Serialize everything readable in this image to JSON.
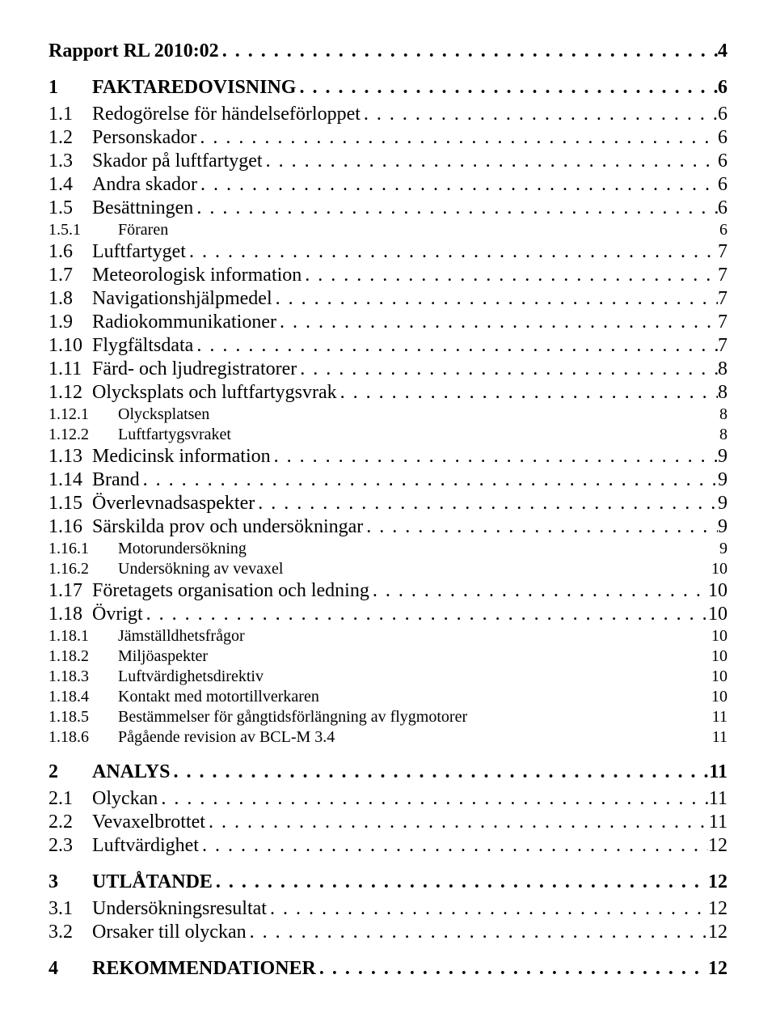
{
  "leader": ". . . . . . . . . . . . . . . . . . . . . . . . . . . . . . . . . . . . . . . . . . . . . . . . . . . . . . . . . . . . . . . . . . . . . . . . . . . . . . . . . . . . . . . . . . . . . . . . . . . . . . . . . . . . . . . . . . . . . . . .",
  "blank": " ",
  "toc": {
    "title": {
      "label": "Rapport RL 2010:02",
      "page": "4"
    },
    "items": [
      {
        "level": 0,
        "num": "1",
        "label": "FAKTAREDOVISNING",
        "page": "6"
      },
      {
        "level": 1,
        "num": "1.1",
        "label": "Redogörelse för händelseförloppet",
        "page": "6"
      },
      {
        "level": 1,
        "num": "1.2",
        "label": "Personskador",
        "page": "6"
      },
      {
        "level": 1,
        "num": "1.3",
        "label": "Skador på luftfartyget",
        "page": "6"
      },
      {
        "level": 1,
        "num": "1.4",
        "label": "Andra skador",
        "page": "6"
      },
      {
        "level": 1,
        "num": "1.5",
        "label": "Besättningen",
        "page": "6"
      },
      {
        "level": 2,
        "num": "1.5.1",
        "label": "Föraren",
        "page": "6",
        "noLeader": true
      },
      {
        "level": 1,
        "num": "1.6",
        "label": "Luftfartyget",
        "page": "7"
      },
      {
        "level": 1,
        "num": "1.7",
        "label": "Meteorologisk information",
        "page": "7"
      },
      {
        "level": 1,
        "num": "1.8",
        "label": "Navigationshjälpmedel",
        "page": "7"
      },
      {
        "level": 1,
        "num": "1.9",
        "label": "Radiokommunikationer",
        "page": "7"
      },
      {
        "level": 1,
        "num": "1.10",
        "label": "Flygfältsdata",
        "page": "7"
      },
      {
        "level": 1,
        "num": "1.11",
        "label": "Färd- och ljudregistratorer",
        "page": "8"
      },
      {
        "level": 1,
        "num": "1.12",
        "label": "Olycksplats och luftfartygsvrak",
        "page": "8"
      },
      {
        "level": 2,
        "num": "1.12.1",
        "label": "Olycksplatsen",
        "page": "8",
        "noLeader": true
      },
      {
        "level": 2,
        "num": "1.12.2",
        "label": "Luftfartygsvraket",
        "page": "8",
        "noLeader": true
      },
      {
        "level": 1,
        "num": "1.13",
        "label": "Medicinsk information",
        "page": "9"
      },
      {
        "level": 1,
        "num": "1.14",
        "label": "Brand",
        "page": "9"
      },
      {
        "level": 1,
        "num": "1.15",
        "label": "Överlevnadsaspekter",
        "page": "9"
      },
      {
        "level": 1,
        "num": "1.16",
        "label": "Särskilda prov och undersökningar",
        "page": "9"
      },
      {
        "level": 2,
        "num": "1.16.1",
        "label": "Motorundersökning",
        "page": "9",
        "noLeader": true
      },
      {
        "level": 2,
        "num": "1.16.2",
        "label": "Undersökning av vevaxel",
        "page": "10",
        "noLeader": true
      },
      {
        "level": 1,
        "num": "1.17",
        "label": "Företagets organisation och ledning",
        "page": "10"
      },
      {
        "level": 1,
        "num": "1.18",
        "label": "Övrigt",
        "page": "10"
      },
      {
        "level": 2,
        "num": "1.18.1",
        "label": "Jämställdhetsfrågor",
        "page": "10",
        "noLeader": true
      },
      {
        "level": 2,
        "num": "1.18.2",
        "label": "Miljöaspekter",
        "page": "10",
        "noLeader": true
      },
      {
        "level": 2,
        "num": "1.18.3",
        "label": "Luftvärdighetsdirektiv",
        "page": "10",
        "noLeader": true
      },
      {
        "level": 2,
        "num": "1.18.4",
        "label": "Kontakt med motortillverkaren",
        "page": "10",
        "noLeader": true
      },
      {
        "level": 2,
        "num": "1.18.5",
        "label": "Bestämmelser för gångtidsförlängning av flygmotorer",
        "page": "11",
        "noLeader": true
      },
      {
        "level": 2,
        "num": "1.18.6",
        "label": "Pågående revision av BCL-M 3.4",
        "page": "11",
        "noLeader": true
      },
      {
        "level": 0,
        "num": "2",
        "label": "ANALYS",
        "page": "11"
      },
      {
        "level": 1,
        "num": "2.1",
        "label": "Olyckan",
        "page": "11"
      },
      {
        "level": 1,
        "num": "2.2",
        "label": "Vevaxelbrottet",
        "page": "11"
      },
      {
        "level": 1,
        "num": "2.3",
        "label": "Luftvärdighet",
        "page": "12"
      },
      {
        "level": 0,
        "num": "3",
        "label": "UTLÅTANDE",
        "page": "12"
      },
      {
        "level": 1,
        "num": "3.1",
        "label": "Undersökningsresultat",
        "page": "12"
      },
      {
        "level": 1,
        "num": "3.2",
        "label": "Orsaker till olyckan",
        "page": "12"
      },
      {
        "level": 0,
        "num": "4",
        "label": "REKOMMENDATIONER",
        "page": "12"
      }
    ]
  }
}
